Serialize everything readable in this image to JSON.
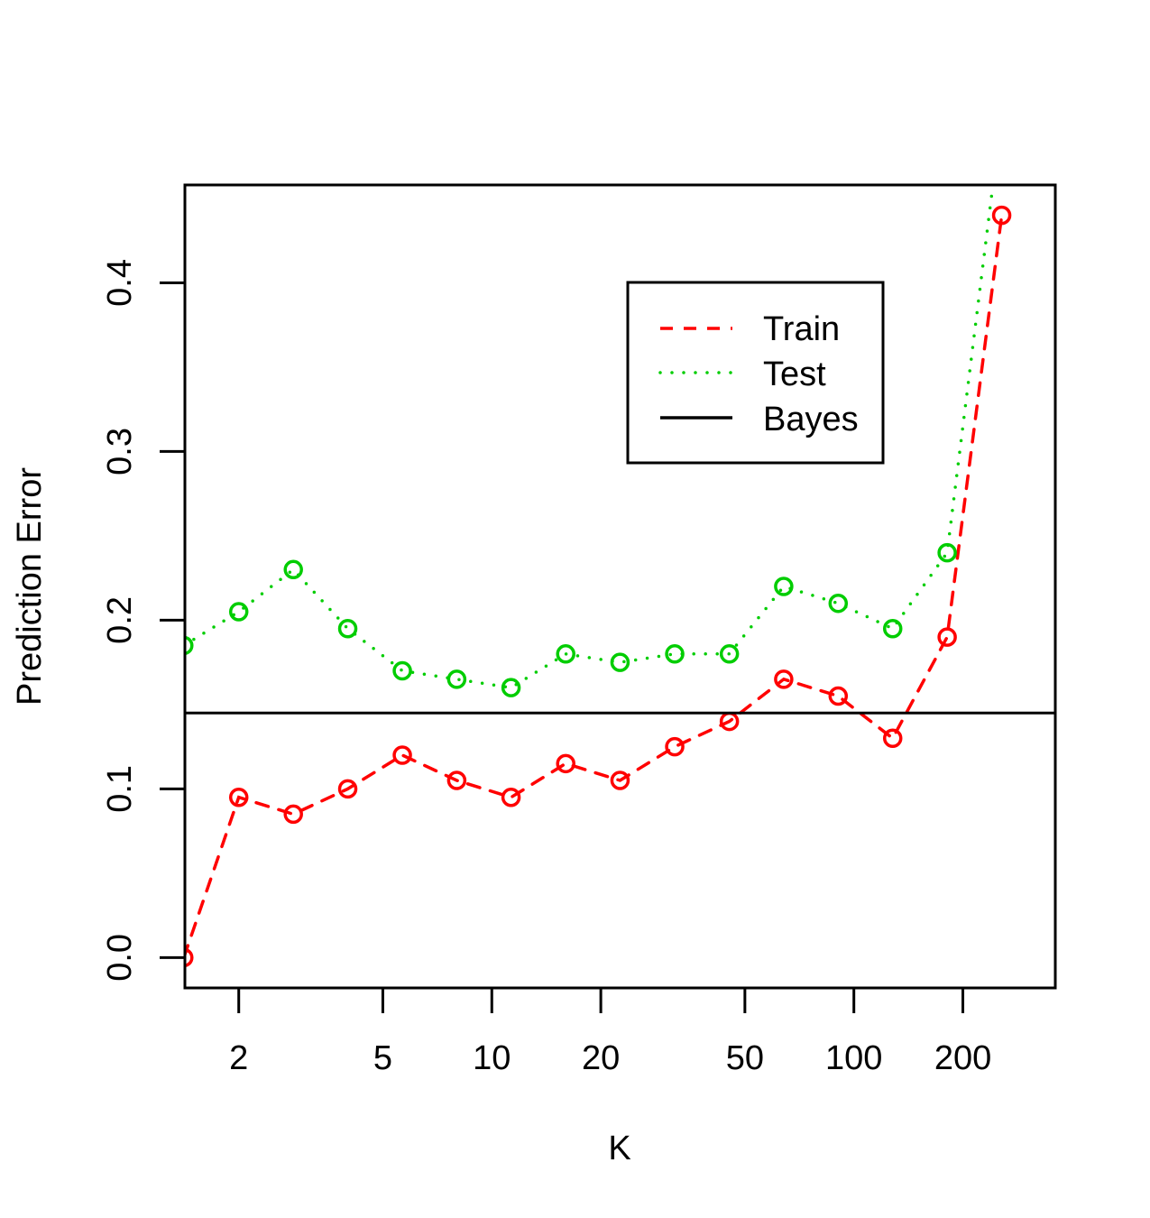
{
  "chart_data": {
    "type": "line",
    "title": "",
    "xlabel": "K",
    "ylabel": "Prediction Error",
    "x_scale": "log",
    "xlim": [
      1.42,
      360
    ],
    "ylim": [
      -0.018,
      0.458
    ],
    "x_ticks": [
      2,
      5,
      10,
      20,
      50,
      100,
      200
    ],
    "x_tick_labels": [
      "2",
      "5",
      "10",
      "20",
      "50",
      "100",
      "200"
    ],
    "y_ticks": [
      0.0,
      0.1,
      0.2,
      0.3,
      0.4
    ],
    "y_tick_labels": [
      "0.0",
      "0.1",
      "0.2",
      "0.3",
      "0.4"
    ],
    "grid": false,
    "legend_position": "top-right",
    "series": [
      {
        "name": "Train",
        "color": "#ff0000",
        "line_style": "dashed",
        "marker": "open-circle",
        "x": [
          1.41,
          2.0,
          2.83,
          4.0,
          5.66,
          8.0,
          11.3,
          16.0,
          22.6,
          32.0,
          45.3,
          64.0,
          90.5,
          128.0,
          181.0,
          256.0
        ],
        "y": [
          0.0,
          0.095,
          0.085,
          0.1,
          0.12,
          0.105,
          0.095,
          0.115,
          0.105,
          0.125,
          0.14,
          0.165,
          0.155,
          0.13,
          0.19,
          0.44
        ]
      },
      {
        "name": "Test",
        "color": "#00cd00",
        "line_style": "dotted",
        "marker": "open-circle",
        "x": [
          1.41,
          2.0,
          2.83,
          4.0,
          5.66,
          8.0,
          11.3,
          16.0,
          22.6,
          32.0,
          45.3,
          64.0,
          90.5,
          128.0,
          181.0,
          256.0
        ],
        "y": [
          0.185,
          0.205,
          0.23,
          0.195,
          0.17,
          0.165,
          0.16,
          0.18,
          0.175,
          0.18,
          0.18,
          0.22,
          0.21,
          0.195,
          0.24,
          0.5
        ]
      },
      {
        "name": "Bayes",
        "color": "#000000",
        "line_style": "solid",
        "marker": "none",
        "hline": 0.145
      }
    ]
  }
}
